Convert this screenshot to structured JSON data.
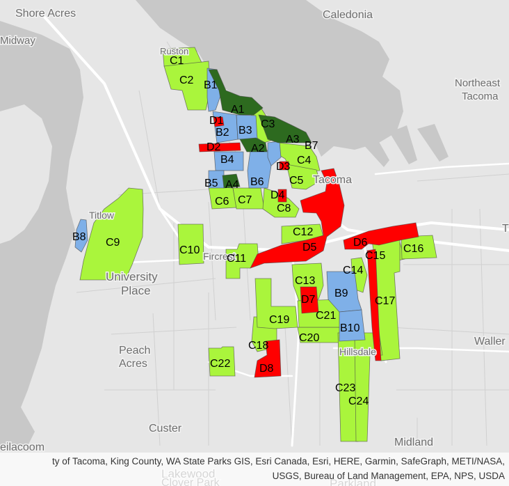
{
  "map": {
    "colors": {
      "land": "#e6e6e6",
      "water": "#c8c8c8",
      "major_road": "#ffffff",
      "minor_road": "#d0d0d0",
      "zone_a": "#2d6a1f",
      "zone_b": "#7fb0e8",
      "zone_c": "#aaf53c",
      "zone_d": "#ff0000"
    },
    "places": [
      {
        "id": "shore-acres",
        "label": "Shore Acres"
      },
      {
        "id": "caledonia",
        "label": "Caledonia"
      },
      {
        "id": "midway",
        "label": "Midway"
      },
      {
        "id": "ruston",
        "label": "Ruston"
      },
      {
        "id": "northeast-tacoma-1",
        "label": "Northeast"
      },
      {
        "id": "northeast-tacoma-2",
        "label": "Tacoma"
      },
      {
        "id": "tacoma",
        "label": "Tacoma"
      },
      {
        "id": "titlow",
        "label": "Titlow"
      },
      {
        "id": "university-place-1",
        "label": "University"
      },
      {
        "id": "university-place-2",
        "label": "Place"
      },
      {
        "id": "fircrest",
        "label": "Fircrest"
      },
      {
        "id": "hillsdale",
        "label": "Hillsdale"
      },
      {
        "id": "waller",
        "label": "Waller"
      },
      {
        "id": "peach-acres-1",
        "label": "Peach"
      },
      {
        "id": "peach-acres-2",
        "label": "Acres"
      },
      {
        "id": "custer",
        "label": "Custer"
      },
      {
        "id": "midland",
        "label": "Midland"
      },
      {
        "id": "steilacoom",
        "label": "eilacoom"
      },
      {
        "id": "lakewood",
        "label": "Lakewood"
      },
      {
        "id": "clover-park",
        "label": "Clover Park"
      },
      {
        "id": "parkland",
        "label": "Parkland"
      },
      {
        "id": "edge-t",
        "label": "T"
      }
    ],
    "zones": [
      {
        "id": "A1",
        "label": "A1",
        "group": "A"
      },
      {
        "id": "A2",
        "label": "A2",
        "group": "A"
      },
      {
        "id": "A3",
        "label": "A3",
        "group": "A"
      },
      {
        "id": "A4",
        "label": "A4",
        "group": "A"
      },
      {
        "id": "B1",
        "label": "B1",
        "group": "B"
      },
      {
        "id": "B2",
        "label": "B2",
        "group": "B"
      },
      {
        "id": "B3",
        "label": "B3",
        "group": "B"
      },
      {
        "id": "B4",
        "label": "B4",
        "group": "B"
      },
      {
        "id": "B5",
        "label": "B5",
        "group": "B"
      },
      {
        "id": "B6",
        "label": "B6",
        "group": "B"
      },
      {
        "id": "B7",
        "label": "B7",
        "group": "B"
      },
      {
        "id": "B8",
        "label": "B8",
        "group": "B"
      },
      {
        "id": "B9",
        "label": "B9",
        "group": "B"
      },
      {
        "id": "B10",
        "label": "B10",
        "group": "B"
      },
      {
        "id": "C1",
        "label": "C1",
        "group": "C"
      },
      {
        "id": "C2",
        "label": "C2",
        "group": "C"
      },
      {
        "id": "C3",
        "label": "C3",
        "group": "C"
      },
      {
        "id": "C4",
        "label": "C4",
        "group": "C"
      },
      {
        "id": "C5",
        "label": "C5",
        "group": "C"
      },
      {
        "id": "C6",
        "label": "C6",
        "group": "C"
      },
      {
        "id": "C7",
        "label": "C7",
        "group": "C"
      },
      {
        "id": "C8",
        "label": "C8",
        "group": "C"
      },
      {
        "id": "C9",
        "label": "C9",
        "group": "C"
      },
      {
        "id": "C10",
        "label": "C10",
        "group": "C"
      },
      {
        "id": "C11",
        "label": "C11",
        "group": "C"
      },
      {
        "id": "C12",
        "label": "C12",
        "group": "C"
      },
      {
        "id": "C13",
        "label": "C13",
        "group": "C"
      },
      {
        "id": "C14",
        "label": "C14",
        "group": "C"
      },
      {
        "id": "C15",
        "label": "C15",
        "group": "C"
      },
      {
        "id": "C16",
        "label": "C16",
        "group": "C"
      },
      {
        "id": "C17",
        "label": "C17",
        "group": "C"
      },
      {
        "id": "C18",
        "label": "C18",
        "group": "C"
      },
      {
        "id": "C19",
        "label": "C19",
        "group": "C"
      },
      {
        "id": "C20",
        "label": "C20",
        "group": "C"
      },
      {
        "id": "C21",
        "label": "C21",
        "group": "C"
      },
      {
        "id": "C22",
        "label": "C22",
        "group": "C"
      },
      {
        "id": "C23",
        "label": "C23",
        "group": "C"
      },
      {
        "id": "C24",
        "label": "C24",
        "group": "C"
      },
      {
        "id": "D1",
        "label": "D1",
        "group": "D"
      },
      {
        "id": "D2",
        "label": "D2",
        "group": "D"
      },
      {
        "id": "D3",
        "label": "D3",
        "group": "D"
      },
      {
        "id": "D4",
        "label": "D4",
        "group": "D"
      },
      {
        "id": "D5",
        "label": "D5",
        "group": "D"
      },
      {
        "id": "D6",
        "label": "D6",
        "group": "D"
      },
      {
        "id": "D7",
        "label": "D7",
        "group": "D"
      },
      {
        "id": "D8",
        "label": "D8",
        "group": "D"
      }
    ]
  },
  "attribution": {
    "line1": "ty of Tacoma, King County, WA State Parks GIS, Esri Canada, Esri, HERE, Garmin, SafeGraph, METI/NASA,",
    "line2": "USGS, Bureau of Land Management, EPA, NPS, USDA"
  }
}
